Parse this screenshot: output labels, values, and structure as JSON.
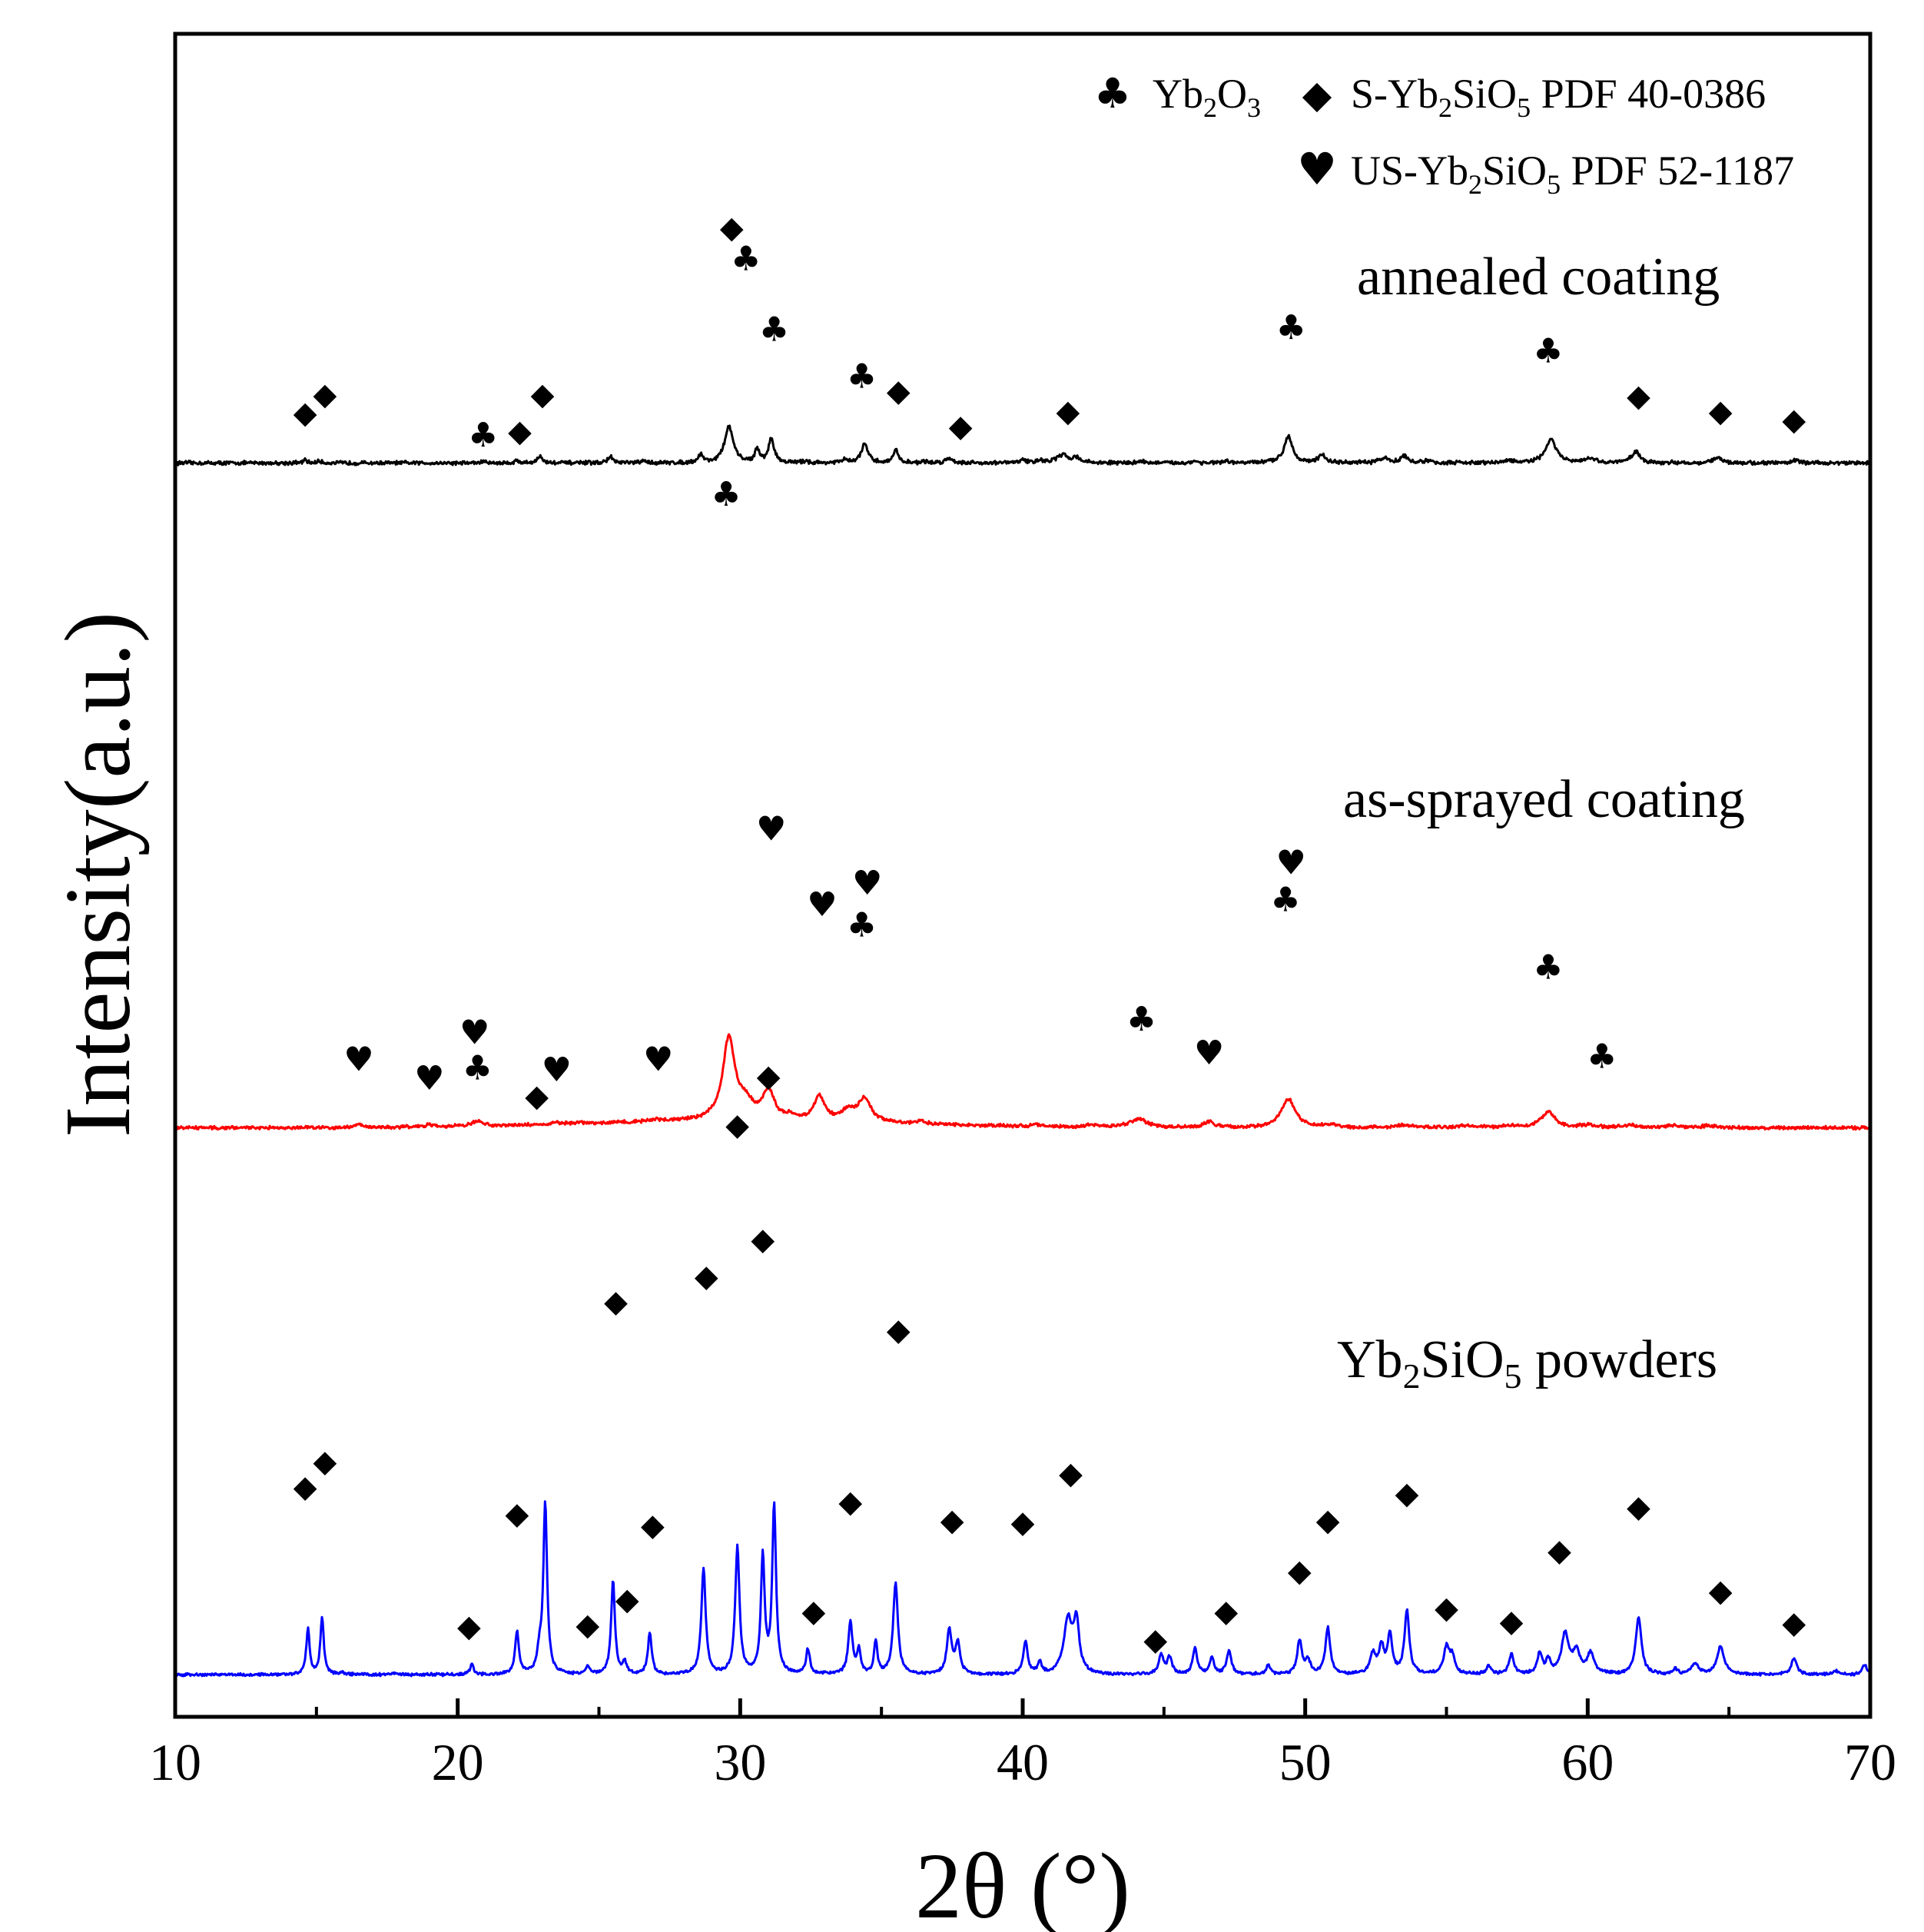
{
  "chart_data": {
    "type": "line",
    "title": "",
    "xlabel": "2θ (°)",
    "ylabel": "Intensity(a.u.)",
    "xlim": [
      10,
      70
    ],
    "xticks": [
      10,
      20,
      30,
      40,
      50,
      60,
      70
    ],
    "xtick_labels": [
      "10",
      "20",
      "30",
      "40",
      "50",
      "60",
      "70"
    ],
    "y_units": "stacked intensity (top of plot = 100, bottom = 0)",
    "ylim": [
      0,
      100
    ],
    "legend": {
      "placement": "top-right",
      "entries": [
        {
          "marker": "club",
          "symbol": "♣",
          "name": "Yb",
          "sub1": "2",
          "mid": "O",
          "sub2": "3",
          "suffix": ""
        },
        {
          "marker": "diamond",
          "symbol": "◆",
          "name": "S-Yb",
          "sub1": "2",
          "mid": "SiO",
          "sub2": "5",
          "suffix": " PDF 40-0386"
        },
        {
          "marker": "heart",
          "symbol": "♥",
          "name": "US-Yb",
          "sub1": "2",
          "mid": "SiO",
          "sub2": "5",
          "suffix": " PDF 52-1187"
        }
      ]
    },
    "series": [
      {
        "name": "annealed coating",
        "label": "annealed coating",
        "color": "#000000",
        "baseline": 74.5,
        "scale": 13.5,
        "peaks": [
          [
            14.6,
            0.12,
            0.08
          ],
          [
            15.1,
            0.08,
            0.08
          ],
          [
            20.9,
            0.06,
            0.1
          ],
          [
            22.1,
            0.1,
            0.08
          ],
          [
            22.9,
            0.3,
            0.1
          ],
          [
            25.4,
            0.28,
            0.1
          ],
          [
            26.6,
            0.08,
            0.1
          ],
          [
            28.6,
            0.36,
            0.1
          ],
          [
            29.6,
            1.6,
            0.18
          ],
          [
            30.6,
            0.55,
            0.1
          ],
          [
            31.1,
            1.05,
            0.12
          ],
          [
            32.3,
            0.08,
            0.1
          ],
          [
            33.7,
            0.14,
            0.1
          ],
          [
            34.4,
            0.82,
            0.14
          ],
          [
            35.5,
            0.6,
            0.1
          ],
          [
            36.5,
            0.06,
            0.1
          ],
          [
            37.4,
            0.2,
            0.15
          ],
          [
            40.0,
            0.14,
            0.12
          ],
          [
            40.6,
            0.12,
            0.12
          ],
          [
            41.4,
            0.34,
            0.25
          ],
          [
            41.9,
            0.22,
            0.15
          ],
          [
            44.2,
            0.1,
            0.1
          ],
          [
            46.1,
            0.08,
            0.1
          ],
          [
            47.2,
            0.06,
            0.1
          ],
          [
            49.4,
            1.18,
            0.18
          ],
          [
            50.6,
            0.34,
            0.15
          ],
          [
            52.8,
            0.2,
            0.2
          ],
          [
            53.5,
            0.3,
            0.15
          ],
          [
            54.3,
            0.08,
            0.15
          ],
          [
            57.2,
            0.12,
            0.15
          ],
          [
            58.7,
            1.05,
            0.22
          ],
          [
            60.1,
            0.18,
            0.2
          ],
          [
            61.7,
            0.5,
            0.18
          ],
          [
            64.6,
            0.22,
            0.18
          ],
          [
            67.3,
            0.12,
            0.15
          ]
        ],
        "markers": [
          [
            14.6,
            "diamond",
            77.6
          ],
          [
            15.3,
            "diamond",
            78.7
          ],
          [
            20.9,
            "club",
            76.2
          ],
          [
            22.2,
            "diamond",
            76.5
          ],
          [
            23.0,
            "diamond",
            78.7
          ],
          [
            29.7,
            "diamond",
            88.6
          ],
          [
            30.2,
            "club",
            86.7
          ],
          [
            31.2,
            "club",
            82.5
          ],
          [
            34.3,
            "club",
            79.7
          ],
          [
            35.6,
            "diamond",
            78.9
          ],
          [
            37.8,
            "diamond",
            76.8
          ],
          [
            41.6,
            "diamond",
            77.7
          ],
          [
            49.5,
            "club",
            82.6
          ],
          [
            58.6,
            "club",
            81.2
          ],
          [
            61.8,
            "diamond",
            78.6
          ],
          [
            64.7,
            "diamond",
            77.7
          ],
          [
            67.3,
            "diamond",
            77.2
          ]
        ]
      },
      {
        "name": "as-sprayed coating",
        "label": "as-sprayed coating",
        "color": "#ff0000",
        "baseline": 35.0,
        "scale": 11.3,
        "peaks": [
          [
            16.5,
            0.15,
            0.15
          ],
          [
            19.0,
            0.1,
            0.15
          ],
          [
            20.7,
            0.25,
            0.22
          ],
          [
            23.5,
            0.08,
            0.15
          ],
          [
            24.3,
            0.06,
            0.15
          ],
          [
            27.0,
            0.1,
            0.2
          ],
          [
            29.6,
            4.3,
            0.26
          ],
          [
            30.2,
            0.8,
            0.3
          ],
          [
            31.0,
            1.5,
            0.25
          ],
          [
            31.8,
            0.2,
            0.2
          ],
          [
            32.8,
            1.3,
            0.22
          ],
          [
            33.8,
            0.55,
            0.25
          ],
          [
            34.4,
            1.23,
            0.28
          ],
          [
            36.4,
            0.12,
            0.2
          ],
          [
            40.5,
            0.1,
            0.2
          ],
          [
            42.4,
            0.12,
            0.2
          ],
          [
            44.1,
            0.45,
            0.35
          ],
          [
            46.6,
            0.32,
            0.2
          ],
          [
            49.4,
            1.5,
            0.3
          ],
          [
            50.9,
            0.12,
            0.3
          ],
          [
            53.5,
            0.12,
            0.4
          ],
          [
            55.7,
            0.1,
            0.3
          ],
          [
            57.3,
            0.1,
            0.3
          ],
          [
            58.6,
            0.82,
            0.3
          ],
          [
            60.0,
            0.12,
            0.3
          ],
          [
            61.5,
            0.15,
            0.3
          ],
          [
            63.0,
            0.1,
            0.3
          ],
          [
            64.3,
            0.1,
            0.3
          ]
        ],
        "markers": [
          [
            16.5,
            "heart",
            39.1
          ],
          [
            19.0,
            "heart",
            38.0
          ],
          [
            20.6,
            "heart",
            40.7
          ],
          [
            20.7,
            "club",
            38.6
          ],
          [
            23.5,
            "heart",
            38.5
          ],
          [
            27.1,
            "heart",
            39.1
          ],
          [
            29.5,
            "club",
            72.7
          ],
          [
            31.1,
            "heart",
            52.8
          ],
          [
            32.9,
            "heart",
            48.3
          ],
          [
            34.5,
            "heart",
            49.6
          ],
          [
            34.3,
            "club",
            47.1
          ],
          [
            44.2,
            "club",
            41.5
          ],
          [
            46.6,
            "heart",
            39.5
          ],
          [
            49.5,
            "heart",
            50.8
          ],
          [
            49.3,
            "club",
            48.6
          ],
          [
            58.6,
            "club",
            44.6
          ],
          [
            60.5,
            "club",
            39.3
          ]
        ]
      },
      {
        "name": "Yb2SiO5 powders",
        "label_main": "Yb",
        "label_sub1": "2",
        "label_mid": "SiO",
        "label_sub2": "5",
        "label_suffix": " powders",
        "color": "#0000ff",
        "baseline": 2.5,
        "scale": 9.9,
        "peaks": [
          [
            14.7,
            2.8,
            0.07
          ],
          [
            15.2,
            3.5,
            0.07
          ],
          [
            15.9,
            0.12,
            0.1
          ],
          [
            17.7,
            0.05,
            0.15
          ],
          [
            20.5,
            0.6,
            0.08
          ],
          [
            22.1,
            2.6,
            0.08
          ],
          [
            22.9,
            1.2,
            0.1
          ],
          [
            23.1,
            10.2,
            0.08
          ],
          [
            24.6,
            0.5,
            0.08
          ],
          [
            25.5,
            5.6,
            0.08
          ],
          [
            25.9,
            0.7,
            0.08
          ],
          [
            26.8,
            2.5,
            0.08
          ],
          [
            28.7,
            6.4,
            0.09
          ],
          [
            29.9,
            7.6,
            0.09
          ],
          [
            30.8,
            7.0,
            0.08
          ],
          [
            31.2,
            10.1,
            0.08
          ],
          [
            32.4,
            1.5,
            0.08
          ],
          [
            33.9,
            3.1,
            0.09
          ],
          [
            34.2,
            1.4,
            0.08
          ],
          [
            34.8,
            2.0,
            0.07
          ],
          [
            35.5,
            5.5,
            0.1
          ],
          [
            37.4,
            2.7,
            0.1
          ],
          [
            37.7,
            1.8,
            0.1
          ],
          [
            40.1,
            2.0,
            0.09
          ],
          [
            40.6,
            0.7,
            0.08
          ],
          [
            41.6,
            3.2,
            0.18
          ],
          [
            41.9,
            2.9,
            0.12
          ],
          [
            44.9,
            1.2,
            0.1
          ],
          [
            45.2,
            1.0,
            0.1
          ],
          [
            46.1,
            1.6,
            0.09
          ],
          [
            46.7,
            1.0,
            0.09
          ],
          [
            47.3,
            1.4,
            0.1
          ],
          [
            48.7,
            0.6,
            0.08
          ],
          [
            49.8,
            2.0,
            0.1
          ],
          [
            50.1,
            0.8,
            0.1
          ],
          [
            50.8,
            2.8,
            0.1
          ],
          [
            52.4,
            1.2,
            0.12
          ],
          [
            52.7,
            1.6,
            0.1
          ],
          [
            53.0,
            2.3,
            0.1
          ],
          [
            53.6,
            3.8,
            0.1
          ],
          [
            55.0,
            1.6,
            0.12
          ],
          [
            55.2,
            1.0,
            0.1
          ],
          [
            56.5,
            0.5,
            0.1
          ],
          [
            57.3,
            1.2,
            0.1
          ],
          [
            58.3,
            1.2,
            0.1
          ],
          [
            58.6,
            0.8,
            0.1
          ],
          [
            59.2,
            2.4,
            0.15
          ],
          [
            59.6,
            1.3,
            0.15
          ],
          [
            60.1,
            1.2,
            0.15
          ],
          [
            61.8,
            3.4,
            0.12
          ],
          [
            63.1,
            0.3,
            0.1
          ],
          [
            63.8,
            0.6,
            0.15
          ],
          [
            64.7,
            1.7,
            0.15
          ],
          [
            67.3,
            1.0,
            0.12
          ],
          [
            68.8,
            0.2,
            0.15
          ],
          [
            69.8,
            0.6,
            0.1
          ]
        ],
        "markers": [
          [
            14.6,
            "diamond",
            13.8
          ],
          [
            15.3,
            "diamond",
            15.3
          ],
          [
            20.4,
            "diamond",
            5.5
          ],
          [
            22.1,
            "diamond",
            12.2
          ],
          [
            22.8,
            "diamond",
            37.0
          ],
          [
            24.6,
            "diamond",
            5.6
          ],
          [
            25.6,
            "diamond",
            24.8
          ],
          [
            26.0,
            "diamond",
            7.1
          ],
          [
            26.9,
            "diamond",
            11.5
          ],
          [
            28.8,
            "diamond",
            26.3
          ],
          [
            29.9,
            "diamond",
            35.3
          ],
          [
            30.8,
            "diamond",
            28.5
          ],
          [
            31.0,
            "diamond",
            38.2
          ],
          [
            32.6,
            "diamond",
            6.4
          ],
          [
            33.9,
            "diamond",
            12.9
          ],
          [
            35.6,
            "diamond",
            23.1
          ],
          [
            37.5,
            "diamond",
            11.8
          ],
          [
            40.0,
            "diamond",
            11.7
          ],
          [
            41.7,
            "diamond",
            14.6
          ],
          [
            44.7,
            "diamond",
            4.7
          ],
          [
            47.2,
            "diamond",
            6.4
          ],
          [
            49.8,
            "diamond",
            8.8
          ],
          [
            50.8,
            "diamond",
            11.8
          ],
          [
            53.6,
            "diamond",
            13.4
          ],
          [
            55.0,
            "diamond",
            6.6
          ],
          [
            57.3,
            "diamond",
            5.8
          ],
          [
            59.0,
            "diamond",
            10.0
          ],
          [
            61.8,
            "diamond",
            12.6
          ],
          [
            64.7,
            "diamond",
            7.6
          ],
          [
            67.3,
            "diamond",
            5.7
          ]
        ]
      }
    ]
  }
}
